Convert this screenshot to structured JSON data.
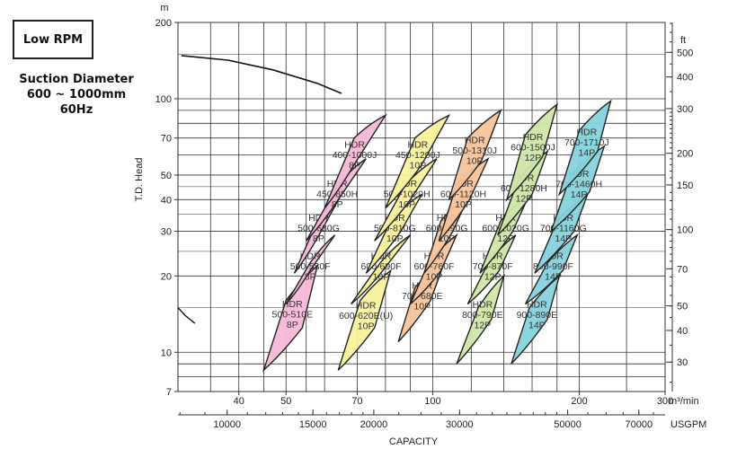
{
  "header": {
    "rpm_label": "Low RPM",
    "info_lines": [
      "Suction Diameter",
      "600 ~ 1000mm",
      "60Hz"
    ]
  },
  "colors": {
    "pink": "#f6b8d8",
    "yellow": "#f8f29c",
    "orange": "#f7c49c",
    "green": "#cfe6a8",
    "cyan": "#86d3dc",
    "grid": "#333333",
    "outline": "#222222"
  },
  "chart_data": {
    "type": "area",
    "title": "",
    "xlabel": "CAPACITY",
    "ylabel": "T.D. Head",
    "x_unit": "m3/min",
    "y_unit": "m",
    "x_secondary_unit": "USGPM",
    "y_secondary_unit": "ft",
    "x_scale": "log",
    "y_scale": "log",
    "xlim": [
      30,
      300
    ],
    "ylim": [
      7,
      200
    ],
    "x_ticks": [
      40,
      50,
      70,
      100,
      200,
      300
    ],
    "y_ticks": [
      7,
      10,
      20,
      30,
      40,
      50,
      70,
      100,
      200
    ],
    "x2_ticks": [
      10000,
      15000,
      20000,
      30000,
      50000,
      70000
    ],
    "y2_ticks": [
      30,
      40,
      50,
      70,
      100,
      150,
      200,
      300,
      400,
      500
    ],
    "grid": true,
    "envelope_curve": {
      "x": [
        30.5,
        38,
        47,
        58,
        65
      ],
      "y": [
        148,
        142,
        130,
        115,
        105
      ]
    },
    "small_hook": {
      "x": [
        30,
        31,
        32.5
      ],
      "y": [
        15,
        14,
        13
      ]
    },
    "zones": [
      {
        "label": [
          "HDR",
          "500-510E",
          "8P"
        ],
        "color": "pink",
        "x": [
          45,
          54,
          58,
          50
        ],
        "y": [
          8.5,
          12.5,
          22,
          16
        ]
      },
      {
        "label": [
          "HDR",
          "500-580F",
          "8P"
        ],
        "color": "pink",
        "x": [
          50,
          56,
          63,
          56
        ],
        "y": [
          15.5,
          21,
          29,
          22.5
        ]
      },
      {
        "label": [
          "HDR",
          "500-680G",
          "8P"
        ],
        "color": "pink",
        "x": [
          52,
          59,
          65,
          58
        ],
        "y": [
          20.5,
          30,
          42,
          33
        ]
      },
      {
        "label": [
          "HDR",
          "450-850H",
          "8P"
        ],
        "color": "pink",
        "x": [
          55,
          64,
          73,
          64
        ],
        "y": [
          27.5,
          40,
          58,
          46
        ]
      },
      {
        "label": [
          "HDR",
          "400-1000J",
          "8P"
        ],
        "color": "pink",
        "x": [
          60,
          69,
          80,
          69
        ],
        "y": [
          37,
          55,
          86,
          70
        ]
      },
      {
        "label": [
          "HDR",
          "600-620E(U)",
          "10P"
        ],
        "color": "yellow",
        "x": [
          64,
          76,
          82,
          71
        ],
        "y": [
          8.5,
          12.5,
          21,
          16
        ]
      },
      {
        "label": [
          "HDR",
          "600-690F",
          "10P"
        ],
        "color": "yellow",
        "x": [
          68,
          79,
          90,
          78
        ],
        "y": [
          15.5,
          21,
          29,
          22.5
        ]
      },
      {
        "label": [
          "HDR",
          "500-810G",
          "10P"
        ],
        "color": "yellow",
        "x": [
          73,
          86,
          95,
          82
        ],
        "y": [
          20.5,
          30,
          42,
          33
        ]
      },
      {
        "label": [
          "HDR",
          "500-1020H",
          "10P"
        ],
        "color": "yellow",
        "x": [
          76,
          90,
          102,
          88
        ],
        "y": [
          27.5,
          40,
          58,
          46
        ]
      },
      {
        "label": [
          "HDR",
          "450-1200J",
          "10P"
        ],
        "color": "yellow",
        "x": [
          80,
          95,
          108,
          92
        ],
        "y": [
          37,
          55,
          86,
          70
        ]
      },
      {
        "label": [
          "HDR",
          "700-680E",
          "10P"
        ],
        "color": "orange",
        "x": [
          85,
          99,
          106,
          92
        ],
        "y": [
          11,
          16,
          23,
          18
        ]
      },
      {
        "label": [
          "HDR",
          "600-760F",
          "10P"
        ],
        "color": "orange",
        "x": [
          90,
          104,
          112,
          98
        ],
        "y": [
          15.5,
          21,
          29,
          22.5
        ]
      },
      {
        "label": [
          "HDR",
          "600-890G",
          "10P"
        ],
        "color": "orange",
        "x": [
          96,
          110,
          119,
          104
        ],
        "y": [
          20.5,
          30,
          42,
          33
        ]
      },
      {
        "label": [
          "HDR",
          "600-1120H",
          "10P"
        ],
        "color": "orange",
        "x": [
          103,
          119,
          130,
          112
        ],
        "y": [
          27.5,
          40,
          58,
          46
        ]
      },
      {
        "label": [
          "HDR",
          "500-1310J",
          "10P"
        ],
        "color": "orange",
        "x": [
          108,
          126,
          138,
          118
        ],
        "y": [
          40,
          57,
          90,
          70
        ]
      },
      {
        "label": [
          "HDR",
          "800-790E",
          "12P"
        ],
        "color": "green",
        "x": [
          112,
          132,
          140,
          124
        ],
        "y": [
          9,
          13.5,
          20,
          15
        ]
      },
      {
        "label": [
          "HDR",
          "700-870F",
          "12P"
        ],
        "color": "green",
        "x": [
          118,
          137,
          148,
          130
        ],
        "y": [
          15.5,
          21,
          29,
          22.5
        ]
      },
      {
        "label": [
          "HDR",
          "600-1020G",
          "12P"
        ],
        "color": "green",
        "x": [
          125,
          146,
          158,
          138
        ],
        "y": [
          20.5,
          30,
          42,
          33
        ]
      },
      {
        "label": [
          "HDR",
          "600-1280H",
          "12P"
        ],
        "color": "green",
        "x": [
          136,
          160,
          172,
          150
        ],
        "y": [
          29,
          42,
          62,
          48
        ]
      },
      {
        "label": [
          "HDR",
          "600-1500J",
          "12P"
        ],
        "color": "green",
        "x": [
          142,
          168,
          180,
          155
        ],
        "y": [
          40,
          59,
          95,
          72
        ]
      },
      {
        "label": [
          "HDR",
          "900-890E",
          "14P"
        ],
        "color": "cyan",
        "x": [
          145,
          172,
          182,
          158
        ],
        "y": [
          9,
          13.5,
          20,
          15
        ]
      },
      {
        "label": [
          "HDR",
          "800-990F",
          "14P"
        ],
        "color": "cyan",
        "x": [
          155,
          185,
          198,
          172
        ],
        "y": [
          15.5,
          21,
          29,
          22.5
        ]
      },
      {
        "label": [
          "HDR",
          "700-1160G",
          "14P"
        ],
        "color": "cyan",
        "x": [
          162,
          195,
          208,
          180
        ],
        "y": [
          20.5,
          30,
          42,
          33
        ]
      },
      {
        "label": [
          "HDR",
          "700-1460H",
          "14P"
        ],
        "color": "cyan",
        "x": [
          175,
          210,
          225,
          192
        ],
        "y": [
          30,
          43,
          65,
          50
        ]
      },
      {
        "label": [
          "HDR",
          "700-1710J",
          "14P"
        ],
        "color": "cyan",
        "x": [
          182,
          218,
          232,
          200
        ],
        "y": [
          42,
          62,
          98,
          75
        ]
      }
    ]
  }
}
